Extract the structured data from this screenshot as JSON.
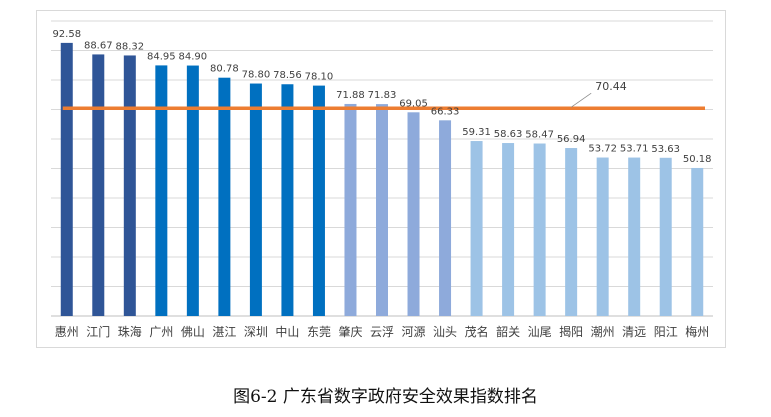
{
  "caption": "图6-2  广东省数字政府安全效果指数排名",
  "chart_data": {
    "type": "bar",
    "title": "",
    "xlabel": "",
    "ylabel": "",
    "ylim": [
      0,
      100
    ],
    "grid": true,
    "categories": [
      "惠州",
      "江门",
      "珠海",
      "广州",
      "佛山",
      "湛江",
      "深圳",
      "中山",
      "东莞",
      "肇庆",
      "云浮",
      "河源",
      "汕头",
      "茂名",
      "韶关",
      "汕尾",
      "揭阳",
      "潮州",
      "清远",
      "阳江",
      "梅州"
    ],
    "values": [
      92.58,
      88.67,
      88.32,
      84.95,
      84.9,
      80.78,
      78.8,
      78.56,
      78.1,
      71.88,
      71.83,
      69.05,
      66.33,
      59.31,
      58.63,
      58.47,
      56.94,
      53.72,
      53.71,
      53.63,
      50.18
    ],
    "value_labels": [
      "92.58",
      "88.67",
      "88.32",
      "84.95",
      "84.90",
      "80.78",
      "78.80",
      "78.56",
      "78.10",
      "71.88",
      "71.83",
      "69.05",
      "66.33",
      "59.31",
      "58.63",
      "58.47",
      "56.94",
      "53.72",
      "53.71",
      "53.63",
      "50.18"
    ],
    "bar_colors": [
      "#2f5597",
      "#2f5597",
      "#2f5597",
      "#0070c0",
      "#0070c0",
      "#0070c0",
      "#0070c0",
      "#0070c0",
      "#0070c0",
      "#8eaadb",
      "#8eaadb",
      "#8eaadb",
      "#8eaadb",
      "#9dc3e6",
      "#9dc3e6",
      "#9dc3e6",
      "#9dc3e6",
      "#9dc3e6",
      "#9dc3e6",
      "#9dc3e6",
      "#9dc3e6"
    ],
    "reference_line": {
      "value": 70.44,
      "label": "70.44",
      "color": "#ed7d31"
    },
    "grid_color": "#d9d9d9"
  }
}
